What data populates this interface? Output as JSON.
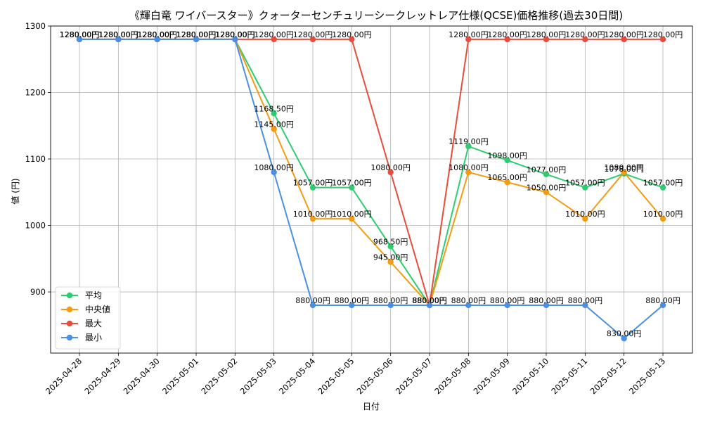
{
  "chart_data": {
    "type": "line",
    "title": "《輝白竜 ワイバースター》クォーターセンチュリーシークレットレア仕様(QCSE)価格推移(過去30日間)",
    "xlabel": "日付",
    "ylabel": "値 (円)",
    "ylim": [
      808,
      1300
    ],
    "yticks": [
      900,
      1000,
      1100,
      1200,
      1300
    ],
    "ytick_labels": [
      "900",
      "1000",
      "1100",
      "1200",
      "1300"
    ],
    "grid": true,
    "legend_position": "bottom-left",
    "categories": [
      "2025-04-28",
      "2025-04-29",
      "2025-04-30",
      "2025-05-01",
      "2025-05-02",
      "2025-05-03",
      "2025-05-04",
      "2025-05-05",
      "2025-05-06",
      "2025-05-07",
      "2025-05-08",
      "2025-05-09",
      "2025-05-10",
      "2025-05-11",
      "2025-05-12",
      "2025-05-13"
    ],
    "series": [
      {
        "name": "平均",
        "color": "#2ecc71",
        "values": [
          1280,
          1280,
          1280,
          1280,
          1280,
          1168.5,
          1057,
          1057,
          968.5,
          880,
          1119,
          1098,
          1077,
          1057,
          1078,
          1057
        ],
        "labels": [
          "1280.00円",
          "1280.00円",
          "1280.00円",
          "1280.00円",
          "1280.00円",
          "1168.50円",
          "1057.00円",
          "1057.00円",
          "968.50円",
          "880.00円",
          "1119.00円",
          "1098.00円",
          "1077.00円",
          "1057.00円",
          "1078.00円",
          "1057.00円"
        ]
      },
      {
        "name": "中央値",
        "color": "#f39c12",
        "values": [
          1280,
          1280,
          1280,
          1280,
          1280,
          1145,
          1010,
          1010,
          945,
          880,
          1080,
          1065,
          1050,
          1010,
          1080,
          1010
        ],
        "labels": [
          "1280.00円",
          "1280.00円",
          "1280.00円",
          "1280.00円",
          "1280.00円",
          "1145.00円",
          "1010.00円",
          "1010.00円",
          "945.00円",
          "880.00円",
          "1080.00円",
          "1065.00円",
          "1050.00円",
          "1010.00円",
          "1080.00円",
          "1010.00円"
        ]
      },
      {
        "name": "最大",
        "color": "#e74c3c",
        "values": [
          1280,
          1280,
          1280,
          1280,
          1280,
          1280,
          1280,
          1280,
          1080,
          880,
          1280,
          1280,
          1280,
          1280,
          1280,
          1280
        ],
        "labels": [
          "1280.00円",
          "1280.00円",
          "1280.00円",
          "1280.00円",
          "1280.00円",
          "1280.00円",
          "1280.00円",
          "1280.00円",
          "1080.00円",
          "880.00円",
          "1280.00円",
          "1280.00円",
          "1280.00円",
          "1280.00円",
          "1280.00円",
          "1280.00円"
        ]
      },
      {
        "name": "最小",
        "color": "#4a90e2",
        "values": [
          1280,
          1280,
          1280,
          1280,
          1280,
          1080,
          880,
          880,
          880,
          880,
          880,
          880,
          880,
          880,
          830,
          880
        ],
        "labels": [
          "1280.00円",
          "1280.00円",
          "1280.00円",
          "1280.00円",
          "1280.00円",
          "1080.00円",
          "880.00円",
          "880.00円",
          "880.00円",
          "880.00円",
          "880.00円",
          "880.00円",
          "880.00円",
          "880.00円",
          "830.00円",
          "880.00円"
        ]
      }
    ]
  }
}
